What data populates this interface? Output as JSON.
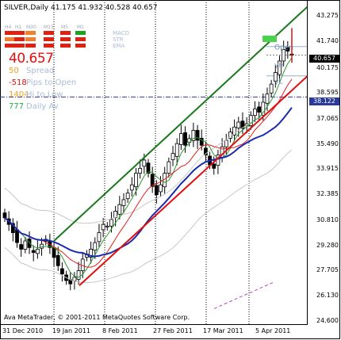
{
  "title": "SILVER,Daily  41.175 41.932 40.528 40.657",
  "panel": {
    "price": "40.657",
    "rows": [
      {
        "value": "50",
        "label": "Spread",
        "color": "#f0a020"
      },
      {
        "value": "-518",
        "label": "Pips to Open",
        "color": "#e01010"
      },
      {
        "value": "1404",
        "label": "Hi to Low",
        "color": "#f0a020"
      },
      {
        "value": "777",
        "label": "Daily Av",
        "color": "#20b040"
      }
    ],
    "timeframes": [
      "H4",
      "H1",
      "M30",
      "M15",
      "M5",
      "M1"
    ],
    "signals": [
      "MACD",
      "STR",
      "EMA"
    ],
    "colors": {
      "up": "#20a020",
      "down": "#e02010",
      "warn": "#f08030"
    }
  },
  "price_axis": [
    "43.275",
    "41.740",
    "40.657",
    "40.175",
    "38.595",
    "38.122",
    "37.065",
    "35.490",
    "33.915",
    "32.385",
    "30.810",
    "29.280",
    "27.705",
    "26.130",
    "24.600"
  ],
  "price_tags": [
    {
      "text": "40.657",
      "color": "#000000"
    },
    {
      "text": "38.122",
      "color": "#2a3a9a"
    }
  ],
  "time_axis": [
    "31 Dec 2010",
    "19 Jan 2011",
    "8 Feb 2011",
    "27 Feb 2011",
    "17 Mar 2011",
    "5 Apr 2011"
  ],
  "annotations": {
    "open": "Open",
    "yh": "yH",
    "yl": "yL"
  },
  "copyright": "Ava MetaTrader, © 2001-2011 MetaQuotes Software Corp.",
  "chart_data": {
    "type": "candlestick",
    "symbol": "SILVER",
    "timeframe": "Daily",
    "ohlc_last": {
      "open": 41.175,
      "high": 41.932,
      "low": 40.528,
      "close": 40.657
    },
    "ylim": [
      24.6,
      43.275
    ],
    "closes": [
      30.8,
      30.4,
      29.9,
      29.3,
      28.9,
      29.4,
      29.0,
      28.7,
      28.9,
      29.2,
      29.5,
      29.0,
      28.4,
      27.9,
      27.4,
      27.0,
      26.8,
      27.2,
      27.6,
      28.3,
      28.6,
      28.9,
      29.3,
      29.9,
      30.4,
      30.3,
      30.7,
      31.2,
      31.6,
      31.9,
      32.3,
      32.8,
      33.5,
      33.8,
      34.3,
      33.5,
      32.7,
      32.2,
      32.8,
      33.5,
      34.2,
      34.7,
      35.3,
      35.9,
      35.2,
      35.6,
      36.1,
      35.5,
      35.2,
      34.6,
      34.0,
      33.8,
      34.6,
      35.1,
      35.5,
      36.0,
      36.3,
      36.6,
      36.2,
      36.5,
      37.0,
      37.4,
      37.2,
      37.8,
      38.3,
      38.9,
      39.6,
      40.3,
      41.0,
      40.9,
      40.657
    ]
  }
}
